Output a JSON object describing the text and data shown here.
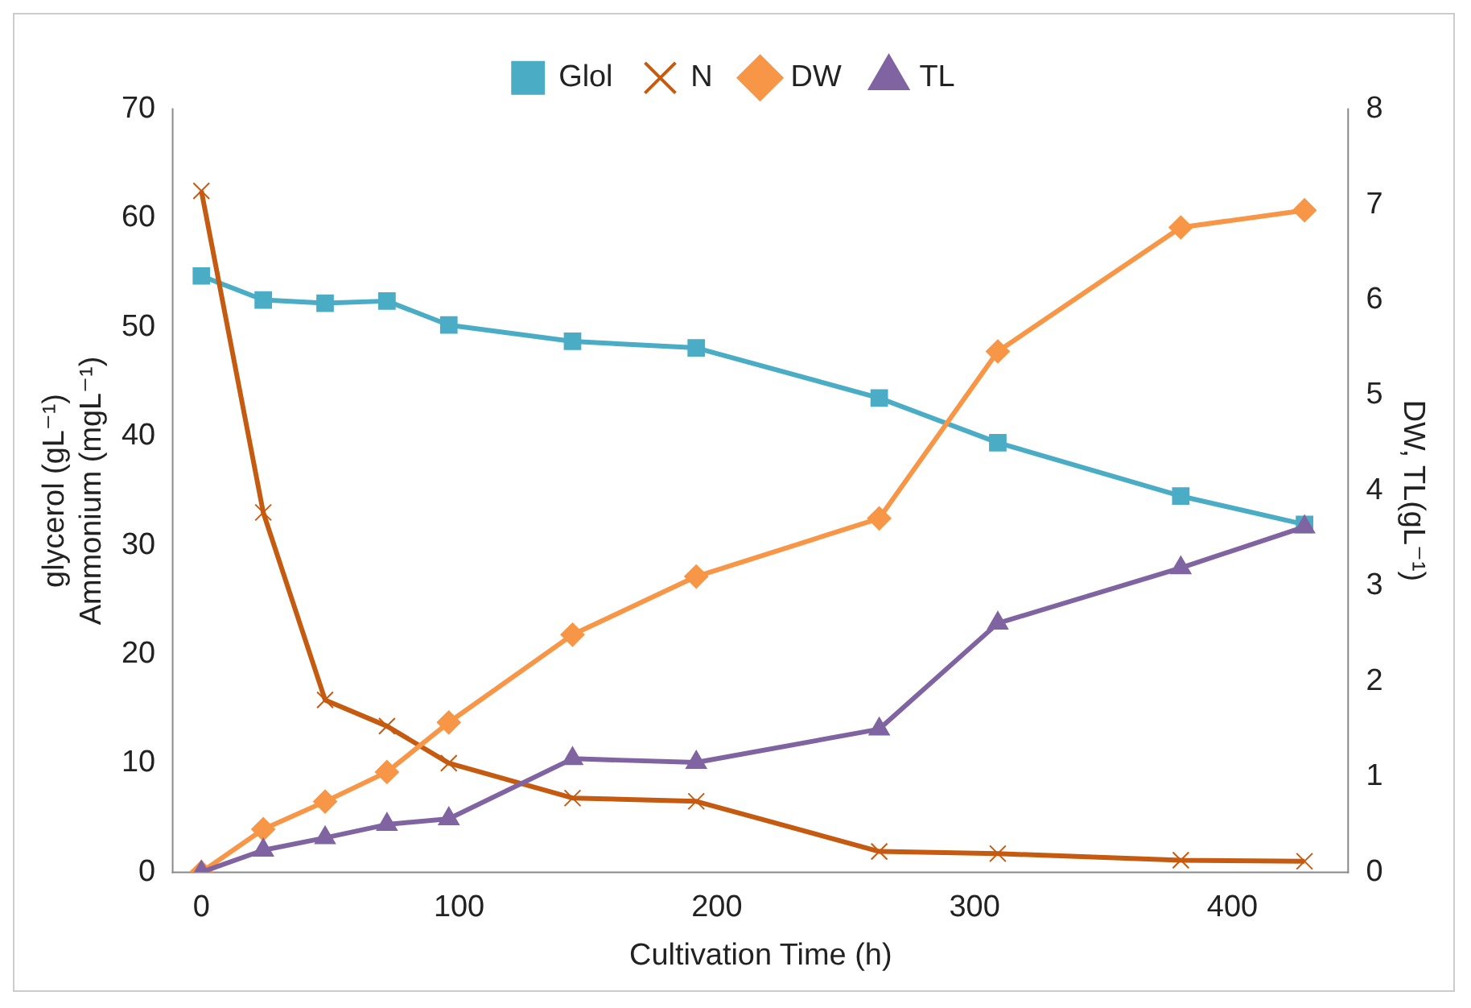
{
  "chart_data": {
    "type": "line",
    "xlabel": "Cultivation Time (h)",
    "ylabel": "glycerol (gL⁻¹)\nAmmonium (mgL⁻¹)",
    "y2label": "DW, TL(gL⁻¹)",
    "x": [
      0,
      24,
      48,
      72,
      96,
      144,
      192,
      263,
      309,
      380,
      428
    ],
    "series": [
      {
        "name": "Glol",
        "color": "#4bacc6",
        "marker": "square",
        "values": [
          54.7,
          52.5,
          52.2,
          52.4,
          50.2,
          48.7,
          48.1,
          43.5,
          39.4,
          34.5,
          31.9
        ]
      },
      {
        "name": "N",
        "color": "#c55a11",
        "marker": "cross",
        "values": [
          62.5,
          33,
          15.8,
          13.4,
          10,
          6.8,
          6.5,
          1.9,
          1.7,
          1.1,
          1.0
        ]
      },
      {
        "name": "DW",
        "color": "#f79646",
        "marker": "diamond",
        "axis": "y2",
        "values": [
          0,
          0.45,
          0.74,
          1.05,
          1.57,
          2.49,
          3.1,
          3.71,
          5.46,
          6.76,
          6.94
        ]
      },
      {
        "name": "TL",
        "color": "#8064a2",
        "marker": "triangle",
        "axis": "y2",
        "values": [
          0,
          0.23,
          0.36,
          0.5,
          0.56,
          1.19,
          1.15,
          1.5,
          2.61,
          3.19,
          3.62
        ]
      }
    ],
    "xlim": [
      -11,
      445
    ],
    "xticks": [
      0,
      100,
      200,
      300,
      400
    ],
    "ylim": [
      0,
      70
    ],
    "yticks": [
      0,
      10,
      20,
      30,
      40,
      50,
      60,
      70
    ],
    "y2lim": [
      0,
      8
    ],
    "y2ticks": [
      0,
      1,
      2,
      3,
      4,
      5,
      6,
      7,
      8
    ],
    "grid": false,
    "legend": "top",
    "line_style": "solid"
  }
}
